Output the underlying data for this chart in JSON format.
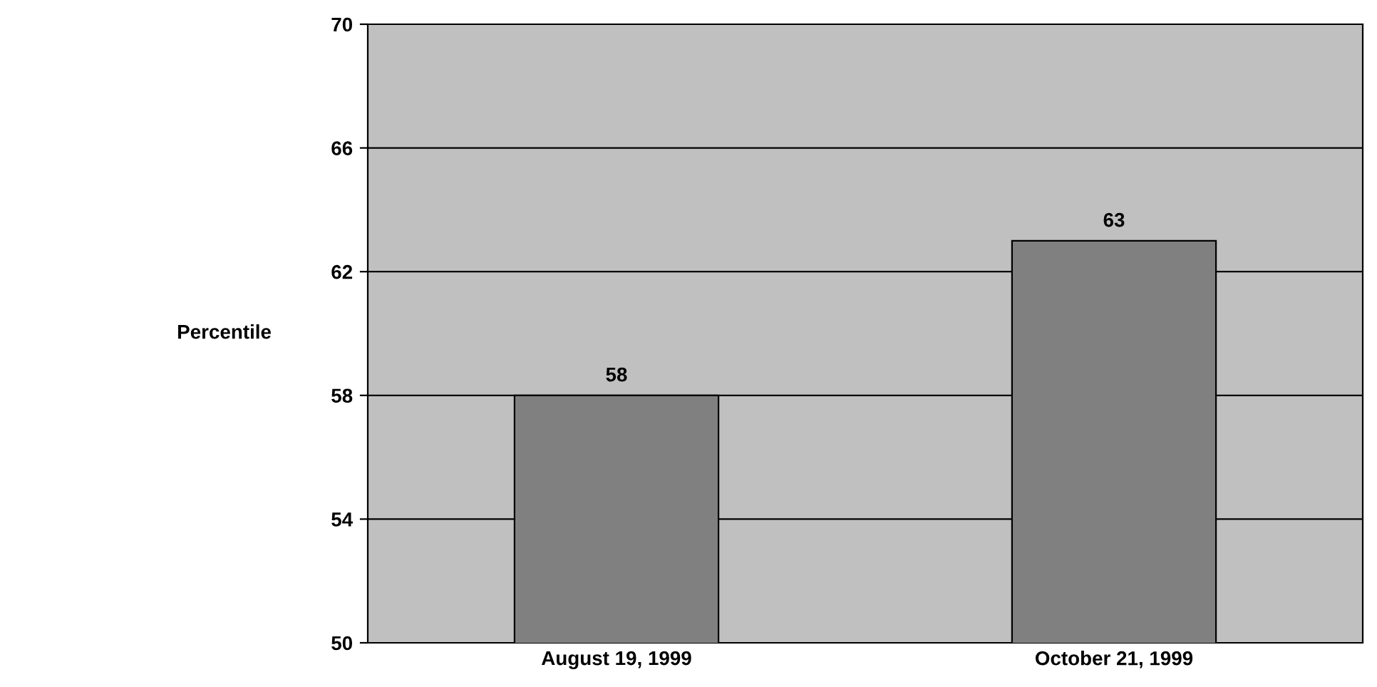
{
  "chart_data": {
    "type": "bar",
    "ylabel": "Percentile",
    "categories": [
      "August 19, 1999",
      "October 21, 1999"
    ],
    "values": [
      58,
      63
    ],
    "color": "#808080",
    "ylim": [
      50,
      70
    ],
    "yticks": [
      50,
      54,
      58,
      62,
      66,
      70
    ],
    "grid": "y",
    "data_labels": true
  }
}
